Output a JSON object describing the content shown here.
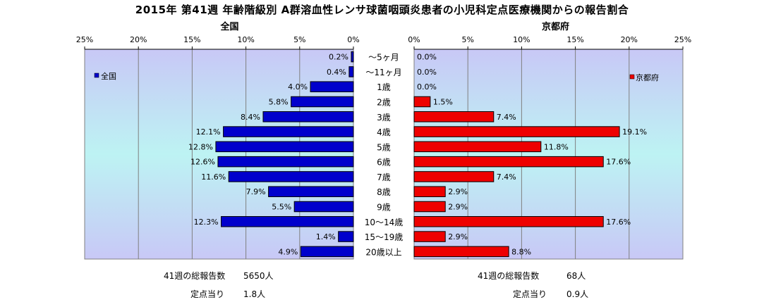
{
  "title": "2015年 第41週 年齢階級別 A群溶血性レンサ球菌咽頭炎患者の小児科定点医療機関からの報告割合",
  "chart_data": [
    {
      "type": "bar",
      "orientation": "horizontal",
      "title": "全国",
      "legend": "全国",
      "legend_position": "left",
      "xlim": [
        0,
        25
      ],
      "x_direction": "reversed",
      "ticks": [
        "25%",
        "20%",
        "15%",
        "10%",
        "5%",
        "0%"
      ],
      "color": "#0000cc",
      "categories": [
        "〜5ヶ月",
        "〜11ヶ月",
        "1歳",
        "2歳",
        "3歳",
        "4歳",
        "5歳",
        "6歳",
        "7歳",
        "8歳",
        "9歳",
        "10〜14歳",
        "15〜19歳",
        "20歳以上"
      ],
      "values": [
        0.2,
        0.4,
        4.0,
        5.8,
        8.4,
        12.1,
        12.8,
        12.6,
        11.6,
        7.9,
        5.5,
        12.3,
        1.4,
        4.9
      ],
      "labels": [
        "0.2%",
        "0.4%",
        "4.0%",
        "5.8%",
        "8.4%",
        "12.1%",
        "12.8%",
        "12.6%",
        "11.6%",
        "7.9%",
        "5.5%",
        "12.3%",
        "1.4%",
        "4.9%"
      ]
    },
    {
      "type": "bar",
      "orientation": "horizontal",
      "title": "京都府",
      "legend": "京都府",
      "legend_position": "right",
      "xlim": [
        0,
        25
      ],
      "x_direction": "normal",
      "ticks": [
        "0%",
        "5%",
        "10%",
        "15%",
        "20%",
        "25%"
      ],
      "color": "#ee0000",
      "categories": [
        "〜5ヶ月",
        "〜11ヶ月",
        "1歳",
        "2歳",
        "3歳",
        "4歳",
        "5歳",
        "6歳",
        "7歳",
        "8歳",
        "9歳",
        "10〜14歳",
        "15〜19歳",
        "20歳以上"
      ],
      "values": [
        0.0,
        0.0,
        0.0,
        1.5,
        7.4,
        19.1,
        11.8,
        17.6,
        7.4,
        2.9,
        2.9,
        17.6,
        2.9,
        8.8
      ],
      "labels": [
        "0.0%",
        "0.0%",
        "0.0%",
        "1.5%",
        "7.4%",
        "19.1%",
        "11.8%",
        "17.6%",
        "7.4%",
        "2.9%",
        "2.9%",
        "17.6%",
        "2.9%",
        "8.8%"
      ]
    }
  ],
  "footer": {
    "national": {
      "total_label": "41週の総報告数",
      "total_value": "5650人",
      "per_label": "定点当り",
      "per_value": "1.8人"
    },
    "kyoto": {
      "total_label": "41週の総報告数",
      "total_value": "68人",
      "per_label": "定点当り",
      "per_value": "0.9人"
    }
  }
}
